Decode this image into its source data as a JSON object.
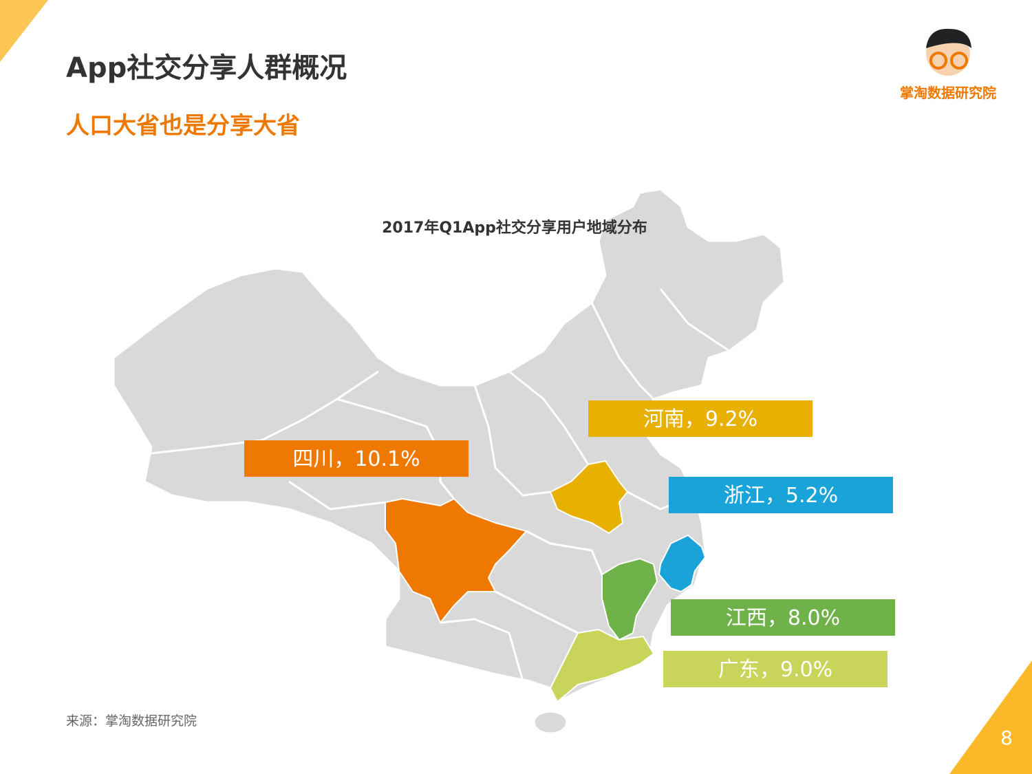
{
  "header": {
    "title": "App社交分享人群概况",
    "subtitle": "人口大省也是分享大省",
    "brand": "掌淘数据研究院"
  },
  "map": {
    "title": "2017年Q1App社交分享用户地域分布",
    "regions": [
      {
        "label": "河南，9.2%",
        "color": "#e8b000"
      },
      {
        "label": "四川，10.1%",
        "color": "#ee7800"
      },
      {
        "label": "浙江，5.2%",
        "color": "#1aa3d8"
      },
      {
        "label": "江西，8.0%",
        "color": "#70b24a"
      },
      {
        "label": "广东，9.0%",
        "color": "#c8d45a"
      }
    ]
  },
  "footer": {
    "source": "来源：掌淘数据研究院",
    "page": "8"
  }
}
